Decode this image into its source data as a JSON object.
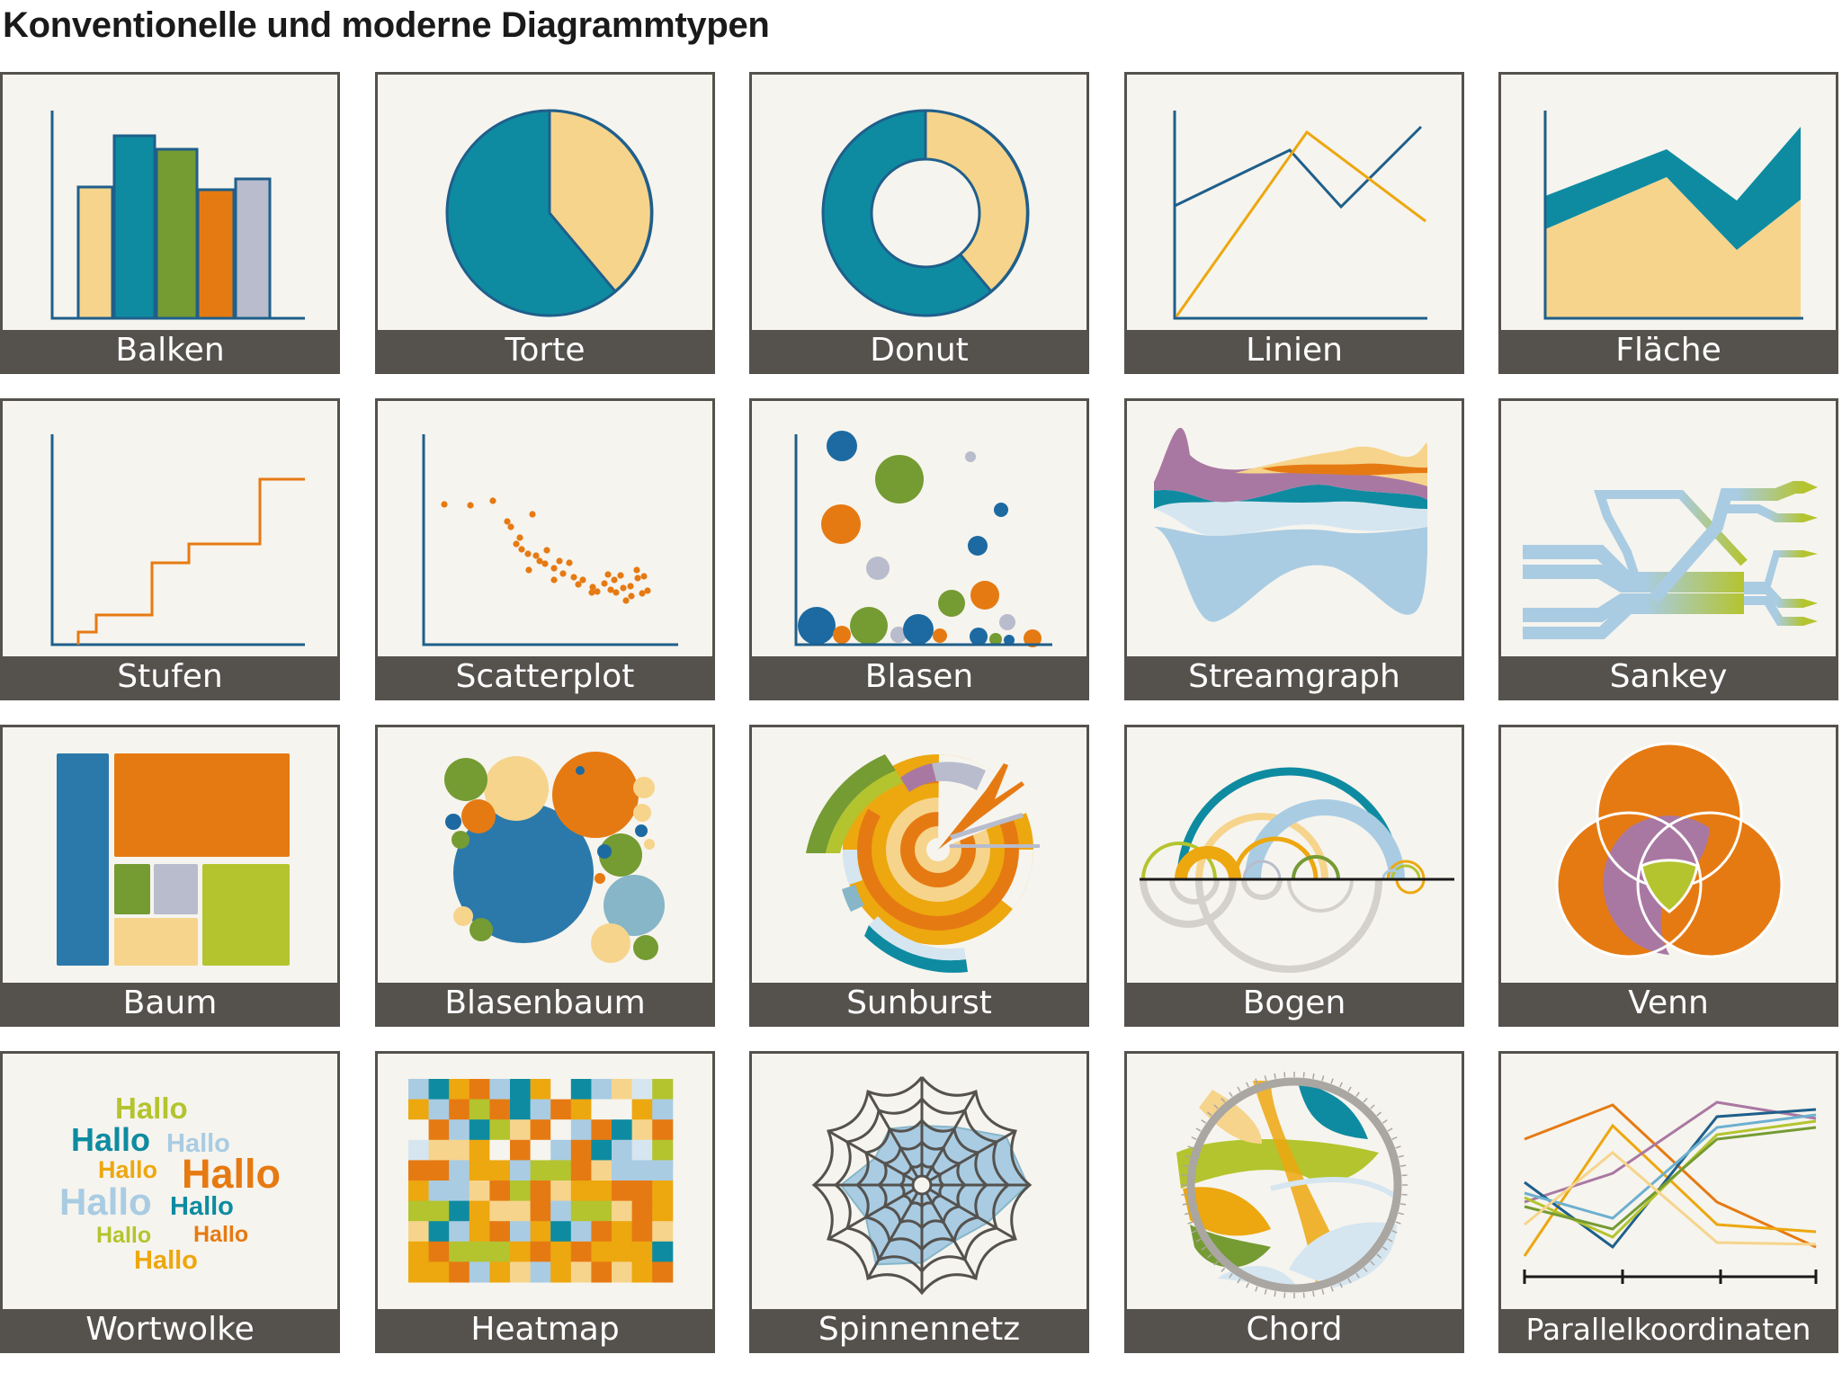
{
  "title": "Konventionelle und moderne Diagrammtypen",
  "colors": {
    "teal": "#0e8ba1",
    "sand": "#f6d48c",
    "green": "#759b33",
    "orange": "#e67a12",
    "grey_blue": "#b8bccc",
    "lime": "#b4c42e",
    "navy": "#1c6aa1",
    "mauve": "#a978a2",
    "light_blue": "#a9cce3",
    "gold": "#eda70f",
    "axis": "#1f5f8b",
    "label_bar": "#55524e",
    "panel": "#f6f4ee"
  },
  "tiles": [
    {
      "label": "Balken"
    },
    {
      "label": "Torte"
    },
    {
      "label": "Donut"
    },
    {
      "label": "Linien"
    },
    {
      "label": "Fläche"
    },
    {
      "label": "Stufen"
    },
    {
      "label": "Scatterplot"
    },
    {
      "label": "Blasen"
    },
    {
      "label": "Streamgraph"
    },
    {
      "label": "Sankey"
    },
    {
      "label": "Baum"
    },
    {
      "label": "Blasenbaum"
    },
    {
      "label": "Sunburst"
    },
    {
      "label": "Bogen"
    },
    {
      "label": "Venn"
    },
    {
      "label": "Wortwolke"
    },
    {
      "label": "Heatmap"
    },
    {
      "label": "Spinnennetz"
    },
    {
      "label": "Chord"
    },
    {
      "label": "Parallelkoordinaten"
    }
  ],
  "wordcloud": {
    "words": [
      "Hallo",
      "Hallo",
      "Hallo",
      "Hallo",
      "Hallo",
      "Hallo",
      "Hallo",
      "Hallo",
      "Hallo",
      "Hallo"
    ]
  }
}
